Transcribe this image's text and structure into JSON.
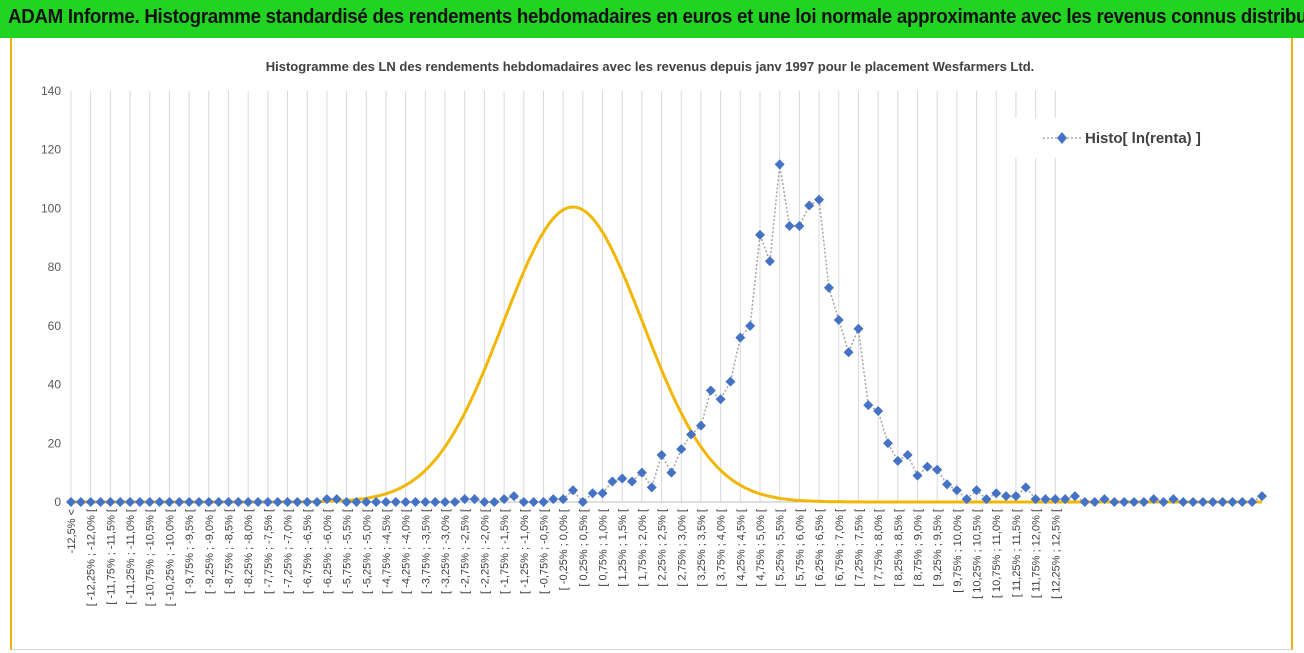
{
  "header": {
    "title": "ADAM Informe. Histogramme standardisé des rendements hebdomadaires en euros et une loi normale approximante avec les revenus connus distribués"
  },
  "chart_data": {
    "type": "scatter",
    "title": "Histogramme des LN des rendements hebdomadaires avec les revenus depuis janv 1997 pour le placement Wesfarmers Ltd.",
    "xlabel": "",
    "ylabel": "",
    "ylim": [
      0,
      140
    ],
    "yticks": [
      0,
      20,
      40,
      60,
      80,
      100,
      120,
      140
    ],
    "grid": {
      "vertical": true,
      "horizontal": false
    },
    "legend_position": "top-right",
    "colors": {
      "histo": "#4472c4",
      "histo_line": "#a5a5a5",
      "normal": "#f2b705",
      "banner": "#22d422",
      "frame": "#e9b10a"
    },
    "categories": [
      "-12,5% <",
      "[ -12,25% ; -12,0% [",
      "[ -11,75% ; -11,5% [",
      "[ -11,25% ; -11,0% [",
      "[ -10,75% ; -10,5% [",
      "[ -10,25% ; -10,0% [",
      "[ -9,75% ; -9,5% [",
      "[ -9,25% ; -9,0% [",
      "[ -8,75% ; -8,5% [",
      "[ -8,25% ; -8,0% [",
      "[ -7,75% ; -7,5% [",
      "[ -7,25% ; -7,0% [",
      "[ -6,75% ; -6,5% [",
      "[ -6,25% ; -6,0% [",
      "[ -5,75% ; -5,5% [",
      "[ -5,25% ; -5,0% [",
      "[ -4,75% ; -4,5% [",
      "[ -4,25% ; -4,0% [",
      "[ -3,75% ; -3,5% [",
      "[ -3,25% ; -3,0% [",
      "[ -2,75% ; -2,5% [",
      "[ -2,25% ; -2,0% [",
      "[ -1,75% ; -1,5% [",
      "[ -1,25% ; -1,0% [",
      "[ -0,75% ; -0,5% [",
      "[ -0,25% ; 0,0% [",
      "[ 0,25% ; 0,5% [",
      "[ 0,75% ; 1,0% [",
      "[ 1,25% ; 1,5% [",
      "[ 1,75% ; 2,0% [",
      "[ 2,25% ; 2,5% [",
      "[ 2,75% ; 3,0% [",
      "[ 3,25% ; 3,5% [",
      "[ 3,75% ; 4,0% [",
      "[ 4,25% ; 4,5% [",
      "[ 4,75% ; 5,0% [",
      "[ 5,25% ; 5,5% [",
      "[ 5,75% ; 6,0% [",
      "[ 6,25% ; 6,5% [",
      "[ 6,75% ; 7,0% [",
      "[ 7,25% ; 7,5% [",
      "[ 7,75% ; 8,0% [",
      "[ 8,25% ; 8,5% [",
      "[ 8,75% ; 9,0% [",
      "[ 9,25% ; 9,5% [",
      "[ 9,75% ; 10,0% [",
      "[ 10,25% ; 10,5% [",
      "[ 10,75% ; 11,0% [",
      "[ 11,25% ; 11,5% [",
      "[ 11,75% ; 12,0% [",
      "[ 12,25% ; 12,5% ["
    ],
    "series": [
      {
        "name": "Histo[ ln(renta) ]",
        "style": "dotted line with diamond markers",
        "values": [
          0,
          0,
          0,
          0,
          0,
          0,
          0,
          0,
          0,
          0,
          0,
          0,
          0,
          0,
          0,
          0,
          0,
          0,
          0,
          0,
          0,
          0,
          0,
          0,
          0,
          0,
          1,
          1,
          0,
          0,
          0,
          0,
          0,
          0,
          0,
          0,
          0,
          0,
          0,
          0,
          1,
          1,
          0,
          0,
          1,
          2,
          0,
          0,
          0,
          1,
          1,
          4,
          0,
          3,
          3,
          7,
          8,
          7,
          10,
          5,
          16,
          10,
          18,
          23,
          26,
          38,
          35,
          41,
          56,
          60,
          91,
          82,
          115,
          94,
          94,
          101,
          103,
          73,
          62,
          51,
          59,
          33,
          31,
          20,
          14,
          16,
          9,
          12,
          11,
          6,
          4,
          1,
          4,
          1,
          3,
          2,
          2,
          5,
          1,
          1,
          1,
          1,
          2,
          0,
          0,
          1,
          0,
          0,
          0,
          0,
          1,
          0,
          1,
          0,
          0,
          0,
          0,
          0,
          0,
          0,
          0,
          2
        ]
      },
      {
        "name": "",
        "style": "smooth solid curve (approximating normal law)",
        "mean_bin": 51,
        "sd_bins": 7.1,
        "peak": 100.5
      }
    ]
  }
}
